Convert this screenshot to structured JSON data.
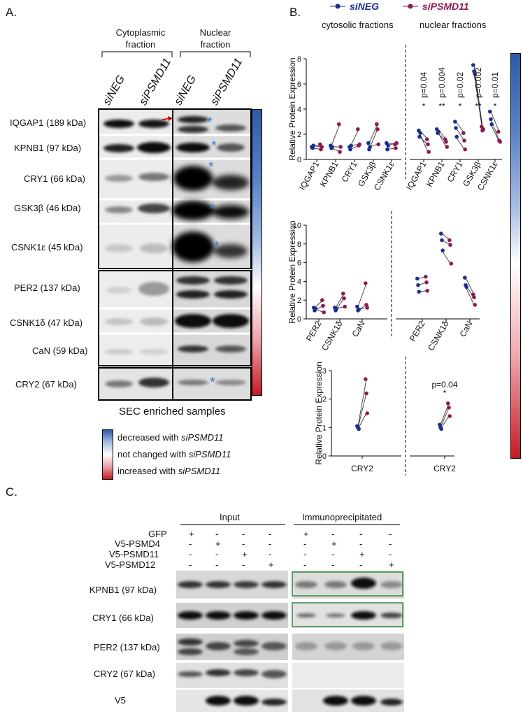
{
  "panelA": {
    "letter": "A.",
    "groups": [
      "Cytoplasmic fraction",
      "Nuclear fraction"
    ],
    "group_lines": [
      [
        "Cytoplasmic",
        "fraction"
      ],
      [
        "Nuclear",
        "fraction"
      ]
    ],
    "lanes": [
      "siNEG",
      "siPSMD11",
      "siNEG",
      "siPSMD11"
    ],
    "proteins": [
      "IQGAP1 (189 kDa)",
      "KPNB1 (97 kDa)",
      "CRY1 (66 kDa)",
      "GSK3β (46 kDa)",
      "CSNK1ε (45 kDa)",
      "PER2 (137 kDa)",
      "CSNK1δ (47 kDa)",
      "CaN (59 kDa)",
      "CRY2 (67 kDa)"
    ],
    "caption": "SEC enriched samples",
    "asterisk": "*",
    "legend": [
      {
        "color": "#2f5aa8",
        "pre": "decreased with ",
        "em": "siPSMD11"
      },
      {
        "color": "#ffffff",
        "pre": "not changed with ",
        "em": "siPSMD11"
      },
      {
        "color": "#c41a23",
        "pre": "increased with ",
        "em": "siPSMD11"
      }
    ]
  },
  "panelB": {
    "letter": "B.",
    "legend": [
      "siNEG",
      "siPSMD11"
    ],
    "legend_colors": [
      "#1c2f8c",
      "#8e1a4f"
    ],
    "fraction_titles": [
      "cytosolic fractions",
      "nuclear fractions"
    ],
    "ylabel": "Relative Protein Expression"
  },
  "chart_data": [
    {
      "type": "scatter",
      "ylabel": "Relative Protein Expression",
      "ylim": [
        0,
        8
      ],
      "yticks": [
        0,
        2,
        4,
        6,
        8
      ],
      "categories": [
        "IQGAP1",
        "KPNB1",
        "CRY1",
        "GSK3β",
        "CSNK1ε",
        "IQGAP1",
        "KPNB1",
        "CRY1",
        "GSK3β",
        "CSNK1ε"
      ],
      "series": [
        {
          "name": "siNEG",
          "values": [
            [
              1.0,
              0.9,
              1.1
            ],
            [
              1.1,
              0.9,
              1.0
            ],
            [
              1.0,
              0.8,
              1.1
            ],
            [
              1.3,
              0.8,
              1.0
            ],
            [
              1.3,
              0.8,
              1.1
            ],
            [
              2.3,
              1.8,
              2.1
            ],
            [
              2.4,
              2.1,
              2.2
            ],
            [
              3.0,
              2.5,
              1.8
            ],
            [
              7.5,
              7.0,
              6.8
            ],
            [
              3.8,
              3.2,
              2.8
            ]
          ]
        },
        {
          "name": "siPSMD11",
          "values": [
            [
              1.2,
              0.8,
              1.0
            ],
            [
              2.8,
              0.6,
              1.0
            ],
            [
              2.4,
              1.1,
              1.2
            ],
            [
              2.8,
              2.4,
              1.2
            ],
            [
              1.2,
              0.9,
              1.3
            ],
            [
              1.6,
              1.2,
              0.6
            ],
            [
              1.6,
              1.4,
              1.0
            ],
            [
              2.1,
              1.5,
              0.8
            ],
            [
              2.6,
              2.3,
              2.4
            ],
            [
              2.2,
              1.5,
              1.4
            ]
          ]
        }
      ],
      "annotations": [
        {
          "category_index": 5,
          "p": "p=0.04",
          "stars": "*"
        },
        {
          "category_index": 6,
          "p": "p=0.004",
          "stars": "**"
        },
        {
          "category_index": 7,
          "p": "p=0.02",
          "stars": "*"
        },
        {
          "category_index": 8,
          "p": "p=0.002",
          "stars": "**"
        },
        {
          "category_index": 9,
          "p": "p=0.01",
          "stars": "*"
        }
      ]
    },
    {
      "type": "scatter",
      "ylabel": "Relative Protein Expression",
      "ylim": [
        0,
        10
      ],
      "yticks": [
        0,
        2,
        4,
        6,
        8,
        10
      ],
      "categories": [
        "PER2",
        "CSNK1δ",
        "CaN",
        "PER2",
        "CSNK1δ",
        "CaN"
      ],
      "series": [
        {
          "name": "siNEG",
          "values": [
            [
              1.2,
              0.9,
              1.1
            ],
            [
              1.2,
              0.9,
              1.1
            ],
            [
              1.3,
              0.9,
              1.0
            ],
            [
              4.3,
              3.6,
              2.9
            ],
            [
              9.1,
              8.4,
              7.3
            ],
            [
              4.4,
              3.6,
              3.4
            ]
          ]
        },
        {
          "name": "siPSMD11",
          "values": [
            [
              2.0,
              1.4,
              0.7
            ],
            [
              2.7,
              2.2,
              1.3
            ],
            [
              3.8,
              1.5,
              1.2
            ],
            [
              4.5,
              3.9,
              3.0
            ],
            [
              8.4,
              7.9,
              5.9
            ],
            [
              2.6,
              2.3,
              1.5
            ]
          ]
        }
      ]
    },
    {
      "type": "scatter",
      "ylabel": "Relative Protein Expression",
      "ylim": [
        0,
        3
      ],
      "yticks": [
        0,
        1,
        2,
        3
      ],
      "categories": [
        "CRY2",
        "CRY2"
      ],
      "series": [
        {
          "name": "siNEG",
          "values": [
            [
              1.05,
              1.0,
              0.95
            ],
            [
              1.1,
              1.0,
              0.95
            ]
          ]
        },
        {
          "name": "siPSMD11",
          "values": [
            [
              2.7,
              2.2,
              1.5
            ],
            [
              1.85,
              1.7,
              1.4
            ]
          ]
        }
      ],
      "annotations": [
        {
          "category_index": 1,
          "p": "p=0.04",
          "stars": "*"
        }
      ]
    }
  ],
  "panelC": {
    "letter": "C.",
    "groups": [
      "Input",
      "Immunoprecipitated"
    ],
    "conditions": [
      "GFP",
      "V5-PSMD4",
      "V5-PSMD11",
      "V5-PSMD12"
    ],
    "signs": [
      [
        "+",
        "-",
        "-",
        "-",
        "+",
        "-",
        "-",
        "-"
      ],
      [
        "-",
        "+",
        "-",
        "-",
        "-",
        "+",
        "-",
        "-"
      ],
      [
        "-",
        "-",
        "+",
        "-",
        "-",
        "-",
        "+",
        "-"
      ],
      [
        "-",
        "-",
        "-",
        "+",
        "-",
        "-",
        "-",
        "+"
      ]
    ],
    "blots": [
      "KPNB1 (97 kDa)",
      "CRY1 (66 kDa)",
      "PER2 (137 kDa)",
      "CRY2 (67 kDa)",
      "V5"
    ]
  }
}
